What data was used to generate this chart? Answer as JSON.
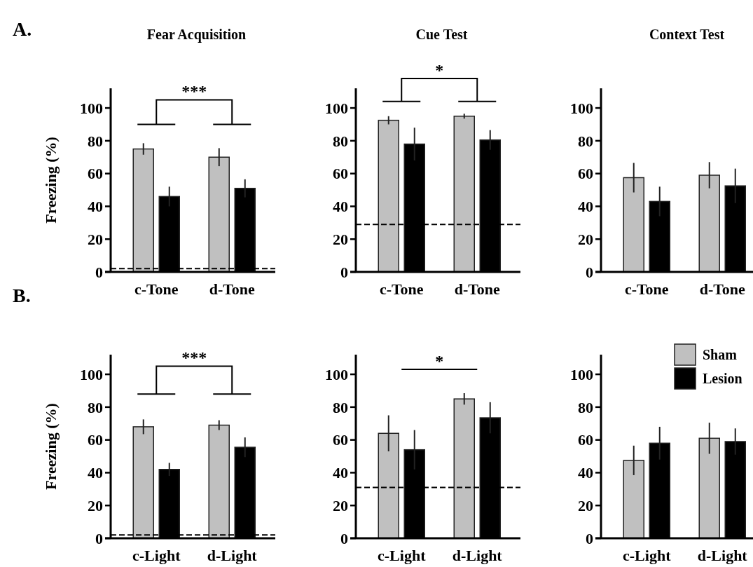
{
  "chart_data": [
    {
      "type": "bar",
      "title": "Fear Acquisition",
      "ylabel": "Freezing (%)",
      "categories": [
        "c-Tone",
        "d-Tone"
      ],
      "ylim": [
        0,
        112
      ],
      "yticks": [
        0,
        20,
        40,
        60,
        80,
        100
      ],
      "legend": false,
      "annotations": [
        "A.",
        "***"
      ],
      "series": [
        {
          "color": "#c0c0c0",
          "values": [
            75,
            70
          ],
          "errors": [
            3.5,
            5.5
          ]
        },
        {
          "color": "#000000",
          "values": [
            46,
            51
          ],
          "errors": [
            6,
            5.5
          ]
        }
      ],
      "ref_lines": [
        {
          "axis": "y",
          "value": 2,
          "color": "#000000",
          "line_style": "dashed"
        }
      ]
    },
    {
      "type": "bar",
      "title": "Cue Test",
      "categories": [
        "c-Tone",
        "d-Tone"
      ],
      "ylim": [
        0,
        112
      ],
      "yticks": [
        0,
        20,
        40,
        60,
        80,
        100
      ],
      "legend": false,
      "annotations": [
        "*"
      ],
      "series": [
        {
          "color": "#c0c0c0",
          "values": [
            92.5,
            95
          ],
          "errors": [
            2.5,
            1.5
          ]
        },
        {
          "color": "#000000",
          "values": [
            78,
            80.5
          ],
          "errors": [
            10,
            6
          ]
        }
      ],
      "ref_lines": [
        {
          "axis": "y",
          "value": 29,
          "color": "#000000",
          "line_style": "dashed"
        }
      ]
    },
    {
      "type": "bar",
      "title": "Context Test",
      "categories": [
        "c-Tone",
        "d-Tone"
      ],
      "ylim": [
        0,
        112
      ],
      "yticks": [
        0,
        20,
        40,
        60,
        80,
        100
      ],
      "legend": false,
      "series": [
        {
          "color": "#c0c0c0",
          "values": [
            57.5,
            59
          ],
          "errors": [
            9,
            8
          ]
        },
        {
          "color": "#000000",
          "values": [
            43,
            52.5
          ],
          "errors": [
            9,
            10.5
          ]
        }
      ]
    },
    {
      "type": "bar",
      "ylabel": "Freezing (%)",
      "categories": [
        "c-Light",
        "d-Light"
      ],
      "ylim": [
        0,
        112
      ],
      "yticks": [
        0,
        20,
        40,
        60,
        80,
        100
      ],
      "legend": false,
      "annotations": [
        "B.",
        "***"
      ],
      "series": [
        {
          "color": "#c0c0c0",
          "values": [
            68,
            69
          ],
          "errors": [
            4.5,
            3
          ]
        },
        {
          "color": "#000000",
          "values": [
            42,
            55.5
          ],
          "errors": [
            4,
            6
          ]
        }
      ],
      "ref_lines": [
        {
          "axis": "y",
          "value": 2,
          "color": "#000000",
          "line_style": "dashed"
        }
      ]
    },
    {
      "type": "bar",
      "categories": [
        "c-Light",
        "d-Light"
      ],
      "ylim": [
        0,
        112
      ],
      "yticks": [
        0,
        20,
        40,
        60,
        80,
        100
      ],
      "legend": false,
      "annotations": [
        "*"
      ],
      "series": [
        {
          "color": "#c0c0c0",
          "values": [
            64,
            85
          ],
          "errors": [
            11,
            3.5
          ]
        },
        {
          "color": "#000000",
          "values": [
            54,
            73.5
          ],
          "errors": [
            12,
            9.5
          ]
        }
      ],
      "ref_lines": [
        {
          "axis": "y",
          "value": 31,
          "color": "#000000",
          "line_style": "dashed"
        }
      ]
    },
    {
      "type": "bar",
      "categories": [
        "c-Light",
        "d-Light"
      ],
      "ylim": [
        0,
        112
      ],
      "yticks": [
        0,
        20,
        40,
        60,
        80,
        100
      ],
      "legend": "top right",
      "series": [
        {
          "name": "Sham",
          "color": "#c0c0c0",
          "values": [
            47.5,
            61
          ],
          "errors": [
            9,
            9.5
          ]
        },
        {
          "name": "Lesion",
          "color": "#000000",
          "values": [
            58,
            59
          ],
          "errors": [
            10,
            8
          ]
        }
      ]
    }
  ]
}
